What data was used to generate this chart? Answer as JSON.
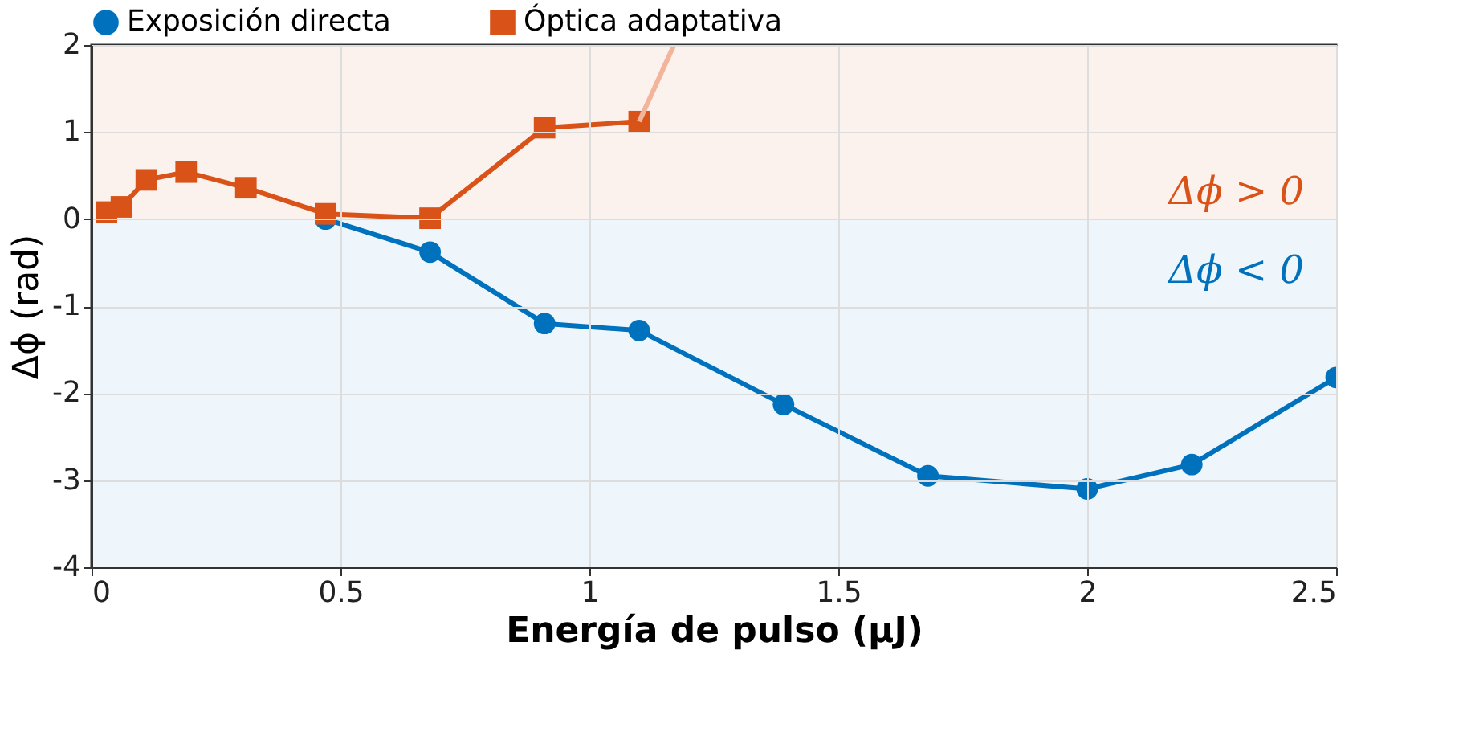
{
  "chart_data": {
    "type": "line",
    "xlabel": "Energía de pulso (μJ)",
    "ylabel": "Δϕ (rad)",
    "xlim": [
      0,
      2.5
    ],
    "xticks": [
      0,
      0.5,
      1,
      1.5,
      2,
      2.5
    ],
    "ylim": [
      -4,
      2
    ],
    "yticks": [
      -4,
      -3,
      -2,
      -1,
      0,
      1,
      2
    ],
    "grid": true,
    "legend": "top",
    "series": [
      {
        "name": "Exposición directa",
        "color": "#0072bd",
        "marker": "circle",
        "x": [
          0.47,
          0.68,
          0.91,
          1.1,
          1.39,
          1.68,
          2.0,
          2.21,
          2.5
        ],
        "values": [
          0.0,
          -0.38,
          -1.2,
          -1.28,
          -2.13,
          -2.95,
          -3.1,
          -2.82,
          -1.82
        ]
      },
      {
        "name": "Óptica adaptativa",
        "color": "#d95319",
        "marker": "square",
        "x": [
          0.03,
          0.06,
          0.11,
          0.19,
          0.31,
          0.47,
          0.68,
          0.91,
          1.1
        ],
        "values": [
          0.08,
          0.14,
          0.45,
          0.54,
          0.36,
          0.06,
          0.01,
          1.05,
          1.12
        ]
      },
      {
        "color": "#f2b49a",
        "marker": "none",
        "x": [
          1.1,
          1.17
        ],
        "values": [
          1.12,
          2.0
        ]
      }
    ],
    "bands": [
      {
        "axis": "y",
        "from": 0,
        "to": 2,
        "label": "Δϕ > 0",
        "color": "#fbf2ee"
      },
      {
        "axis": "y",
        "from": -4,
        "to": 0,
        "label": "Δϕ < 0",
        "color": "#eef5fb"
      }
    ]
  }
}
